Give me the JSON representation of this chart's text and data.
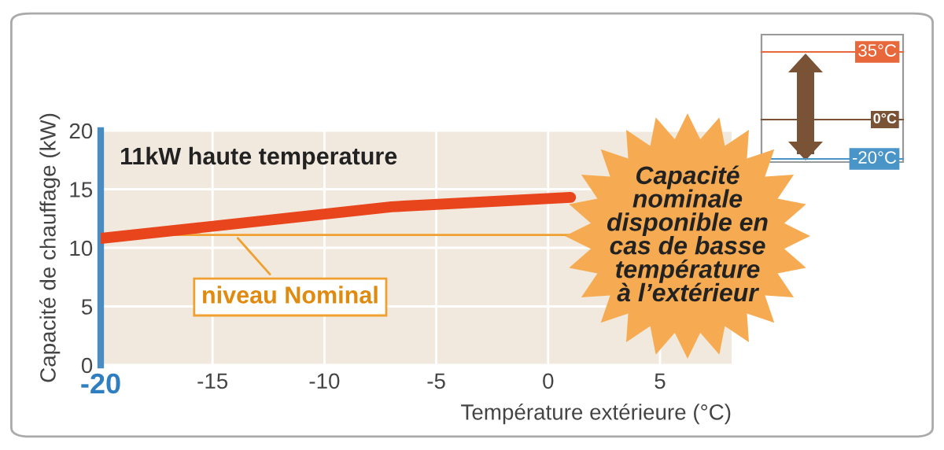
{
  "chart_data": {
    "type": "line",
    "title": "11kW haute temperature",
    "xlabel": "Température extérieure (°C)",
    "ylabel": "Capacité de chauffage (kW)",
    "x": [
      -20,
      -7,
      1
    ],
    "series": [
      {
        "color": "#e8451c",
        "values": [
          10.8,
          13.5,
          14.3
        ]
      }
    ],
    "xlim": [
      -20,
      8.2
    ],
    "ylim": [
      0,
      20
    ],
    "xticks": [
      -20,
      -15,
      -10,
      -5,
      0,
      5
    ],
    "yticks": [
      0,
      5,
      10,
      15,
      20
    ],
    "grid": true,
    "marker": "none",
    "line_style": "solid",
    "ref_lines": [
      {
        "axis": "y",
        "value": 11.1,
        "label": "niveau Nominal",
        "color": "#f0a030"
      }
    ],
    "annotations": [
      "Capacité\nnominale\ndisponible en\ncas de basse\ntempérature\nà l’extérieur",
      "35°C",
      "0°C",
      "-20°C"
    ]
  }
}
